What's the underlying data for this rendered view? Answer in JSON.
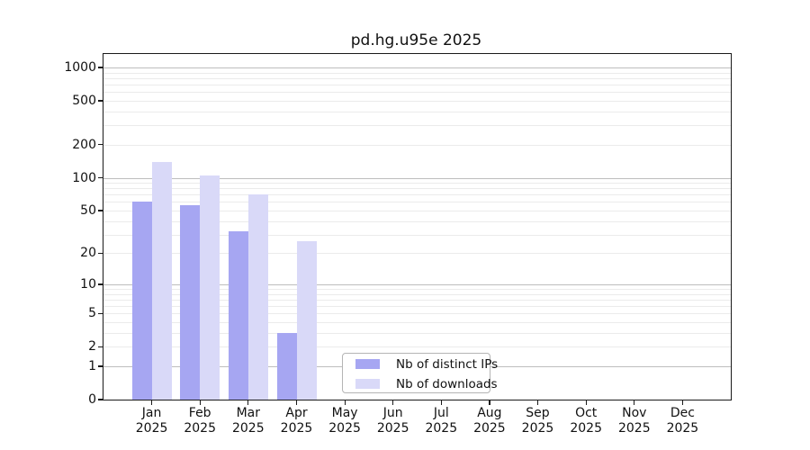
{
  "title": "pd.hg.u95e 2025",
  "chart_data": {
    "type": "bar",
    "title": "pd.hg.u95e 2025",
    "categories": [
      "Jan",
      "Feb",
      "Mar",
      "Apr",
      "May",
      "Jun",
      "Jul",
      "Aug",
      "Sep",
      "Oct",
      "Nov",
      "Dec"
    ],
    "category_year": "2025",
    "series": [
      {
        "name": "Nb of distinct IPs",
        "color": "#a6a6f2",
        "values": [
          60,
          56,
          32,
          3,
          0,
          0,
          0,
          0,
          0,
          0,
          0,
          0
        ]
      },
      {
        "name": "Nb of downloads",
        "color": "#d9d9f8",
        "values": [
          140,
          105,
          70,
          26,
          0,
          0,
          0,
          0,
          0,
          0,
          0,
          0
        ]
      }
    ],
    "y_scale": "log10(value+1)",
    "ylim": [
      0,
      1325
    ],
    "y_ticks": [
      0,
      1,
      2,
      5,
      10,
      20,
      50,
      100,
      200,
      500,
      1000
    ],
    "y_gridlines_major": [
      1,
      10,
      100,
      1000
    ],
    "y_gridlines_minor": [
      2,
      3,
      4,
      5,
      6,
      7,
      8,
      9,
      20,
      30,
      40,
      50,
      60,
      70,
      80,
      90,
      200,
      300,
      400,
      500,
      600,
      700,
      800,
      900
    ],
    "grid": true,
    "legend_position": "lower-center",
    "colors": {
      "spine": "#1a1a1a",
      "grid_major": "#bdbdbd",
      "grid_minor": "#ebebeb",
      "background": "#ffffff"
    }
  }
}
